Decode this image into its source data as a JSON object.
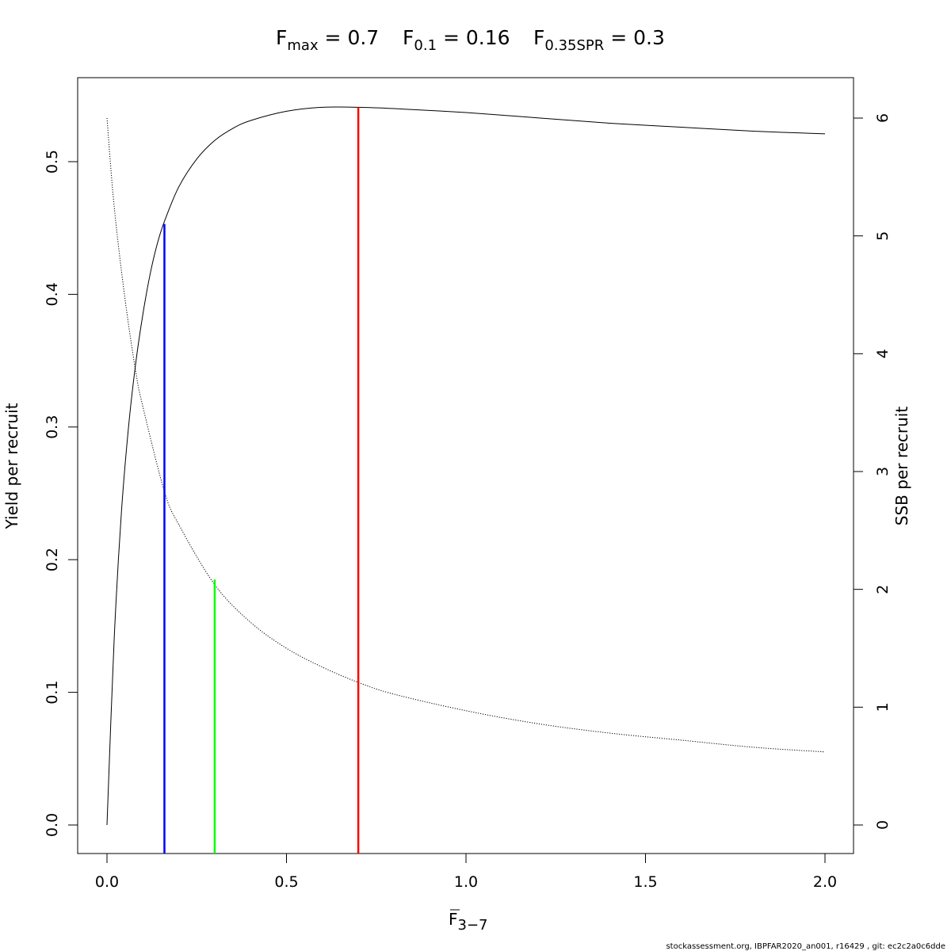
{
  "title": {
    "fmax": {
      "main": "F",
      "sub": "max",
      "value": " = 0.7"
    },
    "f01": {
      "main": "F",
      "sub": "0.1",
      "value": " = 0.16"
    },
    "f035spr": {
      "main": "F",
      "sub": "0.35SPR",
      "value": " = 0.3"
    }
  },
  "footer": "stockassessment.org, IBPFAR2020_an001, r16429 , git: ec2c2a0c6dde",
  "chart_data": {
    "type": "line",
    "xlabel": {
      "main": "F",
      "sub": "3−7"
    },
    "ylabel_left": "Yield per recruit",
    "ylabel_right": "SSB per recruit",
    "xlim": [
      0,
      2
    ],
    "ylim_left": [
      0,
      0.55
    ],
    "ylim_right": [
      0,
      6.1
    ],
    "x_ticks": [
      "0.0",
      "0.5",
      "1.0",
      "1.5",
      "2.0"
    ],
    "y_ticks_left": [
      "0.0",
      "0.1",
      "0.2",
      "0.3",
      "0.4",
      "0.5"
    ],
    "y_ticks_right": [
      "0",
      "1",
      "2",
      "3",
      "4",
      "5",
      "6"
    ],
    "series": [
      {
        "key": "ypr",
        "axis": "left",
        "style": "solid",
        "color": "#000000",
        "x": [
          0,
          0.02,
          0.04,
          0.06,
          0.08,
          0.1,
          0.12,
          0.14,
          0.16,
          0.2,
          0.25,
          0.3,
          0.35,
          0.4,
          0.5,
          0.6,
          0.7,
          0.8,
          1.0,
          1.2,
          1.4,
          1.6,
          1.8,
          2.0
        ],
        "y": [
          0,
          0.14,
          0.235,
          0.3,
          0.348,
          0.385,
          0.415,
          0.438,
          0.455,
          0.481,
          0.502,
          0.516,
          0.525,
          0.531,
          0.538,
          0.541,
          0.541,
          0.54,
          0.537,
          0.533,
          0.529,
          0.526,
          0.523,
          0.521
        ]
      },
      {
        "key": "spr",
        "axis": "right",
        "style": "dotted",
        "color": "#000000",
        "x": [
          0,
          0.02,
          0.05,
          0.08,
          0.1,
          0.16,
          0.2,
          0.3,
          0.4,
          0.5,
          0.6,
          0.7,
          0.8,
          1.0,
          1.2,
          1.4,
          1.6,
          1.8,
          2.0
        ],
        "y": [
          6.0,
          5.25,
          4.47,
          3.85,
          3.55,
          2.83,
          2.55,
          2.04,
          1.72,
          1.5,
          1.34,
          1.21,
          1.11,
          0.97,
          0.86,
          0.78,
          0.72,
          0.66,
          0.62
        ]
      }
    ],
    "reference_lines": [
      {
        "key": "f01",
        "x": 0.16,
        "y_top": 0.453,
        "color": "#0000ff"
      },
      {
        "key": "f035spr",
        "x": 0.3,
        "y_top": 0.185,
        "color": "#00ff00"
      },
      {
        "key": "fmax",
        "x": 0.7,
        "y_top": 0.541,
        "color": "#ff0000"
      }
    ]
  }
}
